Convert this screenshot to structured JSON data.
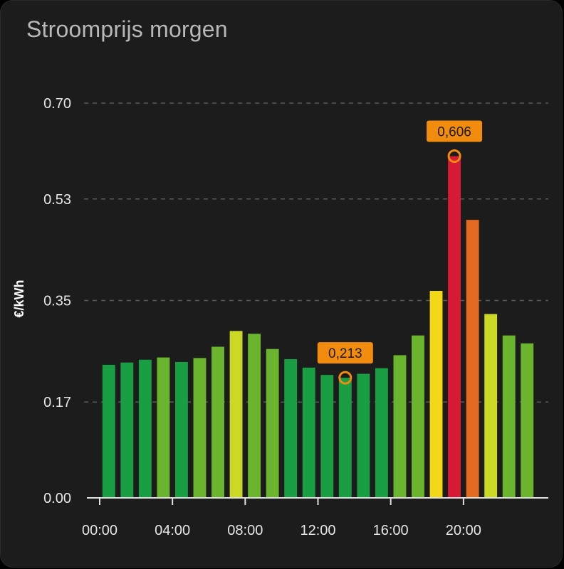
{
  "card": {
    "title": "Stroomprijs morgen"
  },
  "chart_data": {
    "type": "bar",
    "ylabel": "€/kWh",
    "ylim": [
      0,
      0.7
    ],
    "yticks": [
      0.0,
      0.17,
      0.35,
      0.53,
      0.7
    ],
    "ytick_labels": [
      "0.00",
      "0.17",
      "0.35",
      "0.53",
      "0.70"
    ],
    "xlim": [
      0,
      24
    ],
    "xticks": [
      0,
      4,
      8,
      12,
      16,
      20
    ],
    "xtick_labels": [
      "00:00",
      "04:00",
      "08:00",
      "12:00",
      "16:00",
      "20:00"
    ],
    "grid": "horizontal dashed",
    "x": [
      0.5,
      1.5,
      2.5,
      3.5,
      4.5,
      5.5,
      6.5,
      7.5,
      8.5,
      9.5,
      10.5,
      11.5,
      12.5,
      13.5,
      14.5,
      15.5,
      16.5,
      17.5,
      18.5,
      19.5,
      20.5,
      21.5,
      22.5,
      23.5
    ],
    "values": [
      0.236,
      0.24,
      0.245,
      0.249,
      0.241,
      0.248,
      0.268,
      0.296,
      0.291,
      0.264,
      0.246,
      0.231,
      0.218,
      0.213,
      0.22,
      0.23,
      0.253,
      0.288,
      0.367,
      0.606,
      0.493,
      0.326,
      0.288,
      0.274
    ],
    "colors": [
      "#1a9e44",
      "#1a9e44",
      "#1a9e44",
      "#6ab42e",
      "#1a9e44",
      "#6ab42e",
      "#6ab42e",
      "#cbd825",
      "#6ab42e",
      "#6ab42e",
      "#1a9e44",
      "#1a9e44",
      "#1a9e44",
      "#1a9e44",
      "#1a9e44",
      "#1a9e44",
      "#6ab42e",
      "#6ab42e",
      "#f2d816",
      "#d81b34",
      "#e36b21",
      "#cbd825",
      "#6ab42e",
      "#6ab42e"
    ],
    "annotations": [
      {
        "label": "0,606",
        "x": 19.5,
        "y": 0.606
      },
      {
        "label": "0,213",
        "x": 13.5,
        "y": 0.213
      }
    ],
    "annotation_color": "#f28c0f"
  }
}
